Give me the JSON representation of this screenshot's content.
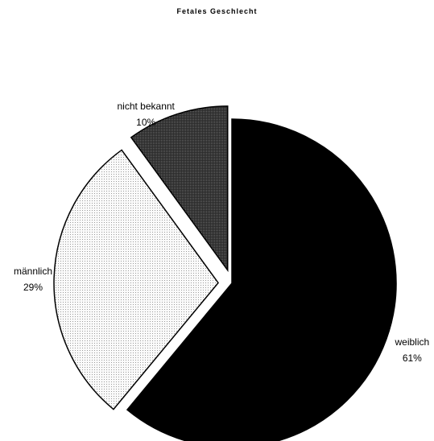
{
  "chart_data": {
    "type": "pie",
    "title": "Fetales Geschlecht",
    "slices": [
      {
        "label": "weiblich",
        "value": 61,
        "display": "61%",
        "fill": "#000000",
        "pattern": "solid"
      },
      {
        "label": "männlich",
        "value": 29,
        "display": "29%",
        "fill": "#f8f8f8",
        "pattern": "fine-dots"
      },
      {
        "label": "nicht bekannt",
        "value": 10,
        "display": "10%",
        "fill": "#3a3a3a",
        "pattern": "dark-dots"
      }
    ],
    "legend": "none",
    "data_labels": "category-and-percent"
  }
}
